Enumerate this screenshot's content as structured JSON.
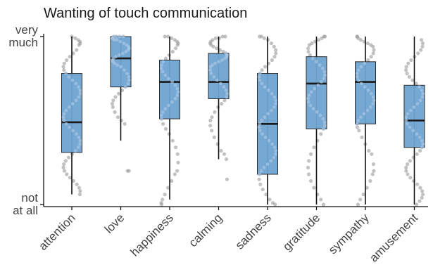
{
  "chart_data": {
    "type": "boxplot",
    "title": "Wanting of touch communication",
    "xlabel": "",
    "ylabel": "",
    "ylim": [
      0,
      100
    ],
    "y_tick_labels": [
      {
        "value": 100,
        "lines": [
          "very",
          "much"
        ]
      },
      {
        "value": 0,
        "lines": [
          "not",
          "at all"
        ]
      }
    ],
    "categories": [
      "attention",
      "love",
      "happiness",
      "calming",
      "sadness",
      "gratitude",
      "sympathy",
      "amusement"
    ],
    "box_color": "#6fa3d2",
    "box_stroke": "#2b2b2b",
    "point_color": "#9a9a9a",
    "boxes": [
      {
        "category": "attention",
        "whisker_low": 6,
        "q1": 31,
        "median": 49,
        "q3": 78,
        "whisker_high": 100
      },
      {
        "category": "love",
        "whisker_low": 38,
        "q1": 70,
        "median": 87,
        "q3": 100,
        "whisker_high": 100
      },
      {
        "category": "happiness",
        "whisker_low": 3,
        "q1": 51,
        "median": 73,
        "q3": 86,
        "whisker_high": 100
      },
      {
        "category": "calming",
        "whisker_low": 27,
        "q1": 63,
        "median": 73,
        "q3": 90,
        "whisker_high": 100
      },
      {
        "category": "sadness",
        "whisker_low": 0,
        "q1": 18,
        "median": 48,
        "q3": 78,
        "whisker_high": 100
      },
      {
        "category": "gratitude",
        "whisker_low": 0,
        "q1": 45,
        "median": 72,
        "q3": 88,
        "whisker_high": 100
      },
      {
        "category": "sympathy",
        "whisker_low": 0,
        "q1": 48,
        "median": 73,
        "q3": 85,
        "whisker_high": 100
      },
      {
        "category": "amusement",
        "whisker_low": 0,
        "q1": 34,
        "median": 50,
        "q3": 71,
        "whisker_high": 100
      }
    ],
    "points": [
      [
        100,
        99,
        98,
        97,
        96,
        95,
        92,
        90,
        88,
        86,
        84,
        82,
        80,
        78,
        76,
        74,
        72,
        70,
        68,
        66,
        64,
        62,
        60,
        58,
        56,
        54,
        52,
        50,
        48,
        46,
        44,
        42,
        40,
        38,
        36,
        34,
        32,
        30,
        28,
        26,
        24,
        22,
        20,
        18,
        16,
        14,
        12,
        10,
        8,
        6
      ],
      [
        100,
        100,
        100,
        100,
        99,
        99,
        98,
        98,
        97,
        96,
        95,
        94,
        93,
        92,
        91,
        90,
        89,
        88,
        87,
        86,
        85,
        84,
        83,
        82,
        80,
        78,
        76,
        74,
        72,
        70,
        68,
        66,
        64,
        62,
        60,
        58,
        55,
        52,
        50,
        48,
        20,
        20
      ],
      [
        100,
        100,
        99,
        98,
        97,
        96,
        95,
        93,
        91,
        89,
        87,
        85,
        83,
        81,
        79,
        77,
        75,
        73,
        71,
        69,
        67,
        65,
        63,
        61,
        59,
        57,
        55,
        53,
        51,
        48,
        45,
        42,
        38,
        34,
        30,
        25,
        20,
        18,
        14,
        10,
        6,
        3,
        1,
        0
      ],
      [
        100,
        100,
        99,
        99,
        98,
        97,
        96,
        95,
        94,
        93,
        92,
        91,
        90,
        89,
        88,
        87,
        86,
        85,
        84,
        83,
        82,
        80,
        78,
        76,
        74,
        72,
        70,
        68,
        66,
        64,
        62,
        60,
        58,
        55,
        52,
        50,
        47,
        44,
        40,
        36,
        32,
        30,
        27,
        15
      ],
      [
        100,
        100,
        99,
        98,
        96,
        94,
        92,
        90,
        88,
        86,
        84,
        82,
        80,
        78,
        76,
        74,
        72,
        70,
        68,
        66,
        64,
        62,
        60,
        58,
        56,
        54,
        52,
        50,
        48,
        46,
        44,
        42,
        40,
        38,
        36,
        34,
        32,
        30,
        28,
        26,
        24,
        22,
        20,
        18,
        15,
        12,
        9,
        6,
        3,
        1,
        0
      ],
      [
        100,
        100,
        99,
        98,
        97,
        96,
        95,
        93,
        91,
        89,
        87,
        85,
        83,
        81,
        79,
        77,
        75,
        73,
        71,
        69,
        67,
        65,
        63,
        61,
        59,
        57,
        55,
        53,
        51,
        49,
        47,
        45,
        42,
        38,
        34,
        30,
        26,
        22,
        18,
        14,
        10,
        6,
        3,
        0
      ],
      [
        100,
        100,
        99,
        98,
        97,
        96,
        95,
        94,
        92,
        90,
        88,
        86,
        84,
        82,
        80,
        78,
        76,
        74,
        72,
        70,
        68,
        66,
        64,
        62,
        60,
        58,
        56,
        54,
        52,
        50,
        48,
        46,
        44,
        40,
        36,
        32,
        30,
        24,
        20,
        18,
        14,
        10,
        6,
        3,
        0
      ],
      [
        98,
        96,
        94,
        92,
        90,
        88,
        86,
        84,
        82,
        80,
        78,
        76,
        74,
        72,
        70,
        68,
        66,
        64,
        62,
        60,
        58,
        56,
        54,
        52,
        50,
        48,
        46,
        44,
        42,
        40,
        38,
        36,
        34,
        32,
        30,
        28,
        26,
        24,
        22,
        20,
        18,
        16,
        14,
        12,
        10,
        8,
        6,
        4,
        2,
        0
      ]
    ]
  }
}
